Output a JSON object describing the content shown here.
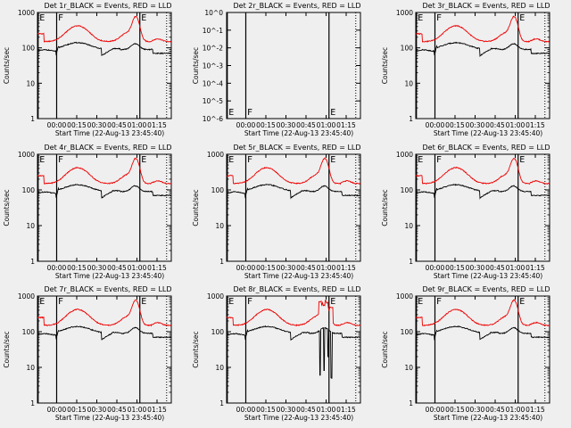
{
  "figure": {
    "background": "#efefef",
    "event_color": "#000000",
    "lld_color": "#ee0000"
  },
  "common": {
    "xlabel": "Start Time (22-Aug-13 23:45:40)",
    "ylabel": "Counts/sec",
    "x_tick_labels": [
      "00:00",
      "00:15",
      "00:30",
      "00:45",
      "01:00",
      "01:15"
    ],
    "x_tick_minutes": [
      14.33,
      29.33,
      44.33,
      59.33,
      74.33,
      89.33
    ],
    "xlim_minutes": [
      0,
      100
    ],
    "marker_labels": [
      "E",
      "F",
      "E"
    ],
    "marker_minutes": [
      0.5,
      14.33,
      76.5
    ],
    "dotted_line_minutes": [
      96.5
    ],
    "log_y_tick_labels": [
      "1",
      "10",
      "100",
      "1000"
    ],
    "det2_y_tick_labels": [
      "10^-6",
      "10^-5",
      "10^-4",
      "10^-3",
      "10^-2",
      "10^-1",
      "10^0"
    ]
  },
  "chart_data": [
    {
      "id": 1,
      "type": "line",
      "title": "Det 1r_BLACK = Events, RED = LLD",
      "yscale": "log",
      "ylim": [
        1,
        1000
      ],
      "profile": "normal",
      "series": [
        "Events",
        "LLD"
      ]
    },
    {
      "id": 2,
      "type": "line",
      "title": "Det 2r_BLACK = Events, RED = LLD",
      "yscale": "log",
      "ylim": [
        1e-06,
        1
      ],
      "profile": "empty",
      "series": []
    },
    {
      "id": 3,
      "type": "line",
      "title": "Det 3r_BLACK = Events, RED = LLD",
      "yscale": "log",
      "ylim": [
        1,
        1000
      ],
      "profile": "normal",
      "series": [
        "Events",
        "LLD"
      ]
    },
    {
      "id": 4,
      "type": "line",
      "title": "Det 4r_BLACK = Events, RED = LLD",
      "yscale": "log",
      "ylim": [
        1,
        1000
      ],
      "profile": "normal",
      "series": [
        "Events",
        "LLD"
      ]
    },
    {
      "id": 5,
      "type": "line",
      "title": "Det 5r_BLACK = Events, RED = LLD",
      "yscale": "log",
      "ylim": [
        1,
        1000
      ],
      "profile": "normal",
      "series": [
        "Events",
        "LLD"
      ]
    },
    {
      "id": 6,
      "type": "line",
      "title": "Det 6r_BLACK = Events, RED = LLD",
      "yscale": "log",
      "ylim": [
        1,
        1000
      ],
      "profile": "normal",
      "series": [
        "Events",
        "LLD"
      ]
    },
    {
      "id": 7,
      "type": "line",
      "title": "Det 7r_BLACK = Events, RED = LLD",
      "yscale": "log",
      "ylim": [
        1,
        1000
      ],
      "profile": "normal",
      "series": [
        "Events",
        "LLD"
      ]
    },
    {
      "id": 8,
      "type": "line",
      "title": "Det 8r_BLACK = Events, RED = LLD",
      "yscale": "log",
      "ylim": [
        1,
        1000
      ],
      "profile": "spiky",
      "series": [
        "Events",
        "LLD"
      ]
    },
    {
      "id": 9,
      "type": "line",
      "title": "Det 9r_BLACK = Events, RED = LLD",
      "yscale": "log",
      "ylim": [
        1,
        1000
      ],
      "profile": "normal",
      "series": [
        "Events",
        "LLD"
      ]
    }
  ]
}
